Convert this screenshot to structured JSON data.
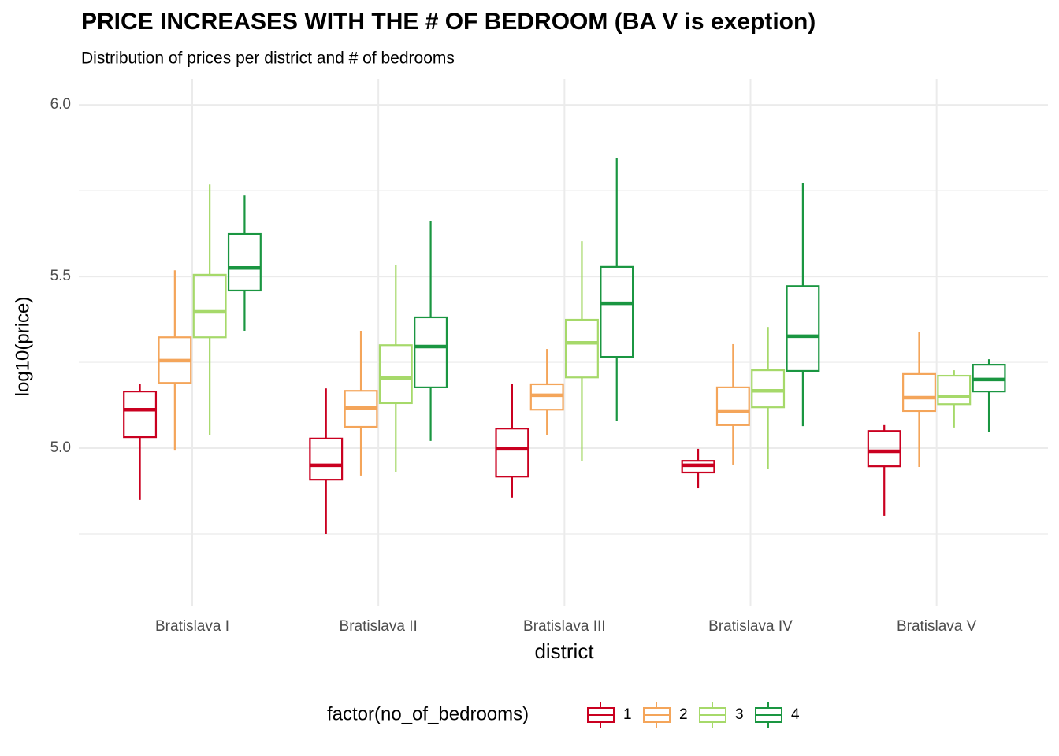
{
  "chart_data": {
    "type": "box",
    "title": "PRICE INCREASES WITH THE # OF BEDROOM (BA V is exeption)",
    "subtitle": "Distribution of prices per district and # of bedrooms",
    "x_label": "district",
    "y_label": "log10(price)",
    "legend_title": "factor(no_of_bedrooms)",
    "legend_position": "bottom",
    "grid": true,
    "categories": [
      "Bratislava I",
      "Bratislava II",
      "Bratislava III",
      "Bratislava IV",
      "Bratislava V"
    ],
    "ylim": [
      4.539,
      6.076
    ],
    "yticks": [
      {
        "value": 5,
        "label": "5.0"
      },
      5.5,
      {
        "value": 6,
        "label": "6.0"
      }
    ],
    "minor_yticks": [
      4.75,
      5.25,
      5.75
    ],
    "series": [
      {
        "name": "1",
        "color": "#ca0020",
        "low": [
          4.849,
          4.75,
          4.856,
          4.883,
          4.803
        ],
        "q1": [
          5.032,
          4.908,
          4.917,
          4.929,
          4.947
        ],
        "median": [
          5.112,
          4.95,
          4.998,
          4.95,
          4.991
        ],
        "q3": [
          5.165,
          5.028,
          5.057,
          4.963,
          5.05
        ],
        "high": [
          5.186,
          5.174,
          5.188,
          4.998,
          5.067
        ]
      },
      {
        "name": "2",
        "color": "#f4a55a",
        "low": [
          4.993,
          4.92,
          5.037,
          4.952,
          4.945
        ],
        "q1": [
          5.19,
          5.062,
          5.112,
          5.067,
          5.108
        ],
        "median": [
          5.255,
          5.117,
          5.154,
          5.108,
          5.147
        ],
        "q3": [
          5.323,
          5.167,
          5.186,
          5.177,
          5.216
        ],
        "high": [
          5.518,
          5.342,
          5.289,
          5.303,
          5.339
        ]
      },
      {
        "name": "3",
        "color": "#a6d96a",
        "low": [
          5.037,
          4.929,
          4.963,
          4.94,
          5.06
        ],
        "q1": [
          5.323,
          5.131,
          5.206,
          5.119,
          5.128
        ],
        "median": [
          5.397,
          5.204,
          5.307,
          5.167,
          5.151
        ],
        "q3": [
          5.505,
          5.3,
          5.374,
          5.227,
          5.211
        ],
        "high": [
          5.768,
          5.534,
          5.603,
          5.353,
          5.227
        ]
      },
      {
        "name": "4",
        "color": "#1a9641",
        "low": [
          5.342,
          5.021,
          5.08,
          5.064,
          5.048
        ],
        "q1": [
          5.459,
          5.177,
          5.266,
          5.225,
          5.165
        ],
        "median": [
          5.525,
          5.296,
          5.422,
          5.326,
          5.2
        ],
        "q3": [
          5.624,
          5.381,
          5.528,
          5.472,
          5.243
        ],
        "high": [
          5.736,
          5.663,
          5.846,
          5.771,
          5.259
        ]
      }
    ]
  }
}
